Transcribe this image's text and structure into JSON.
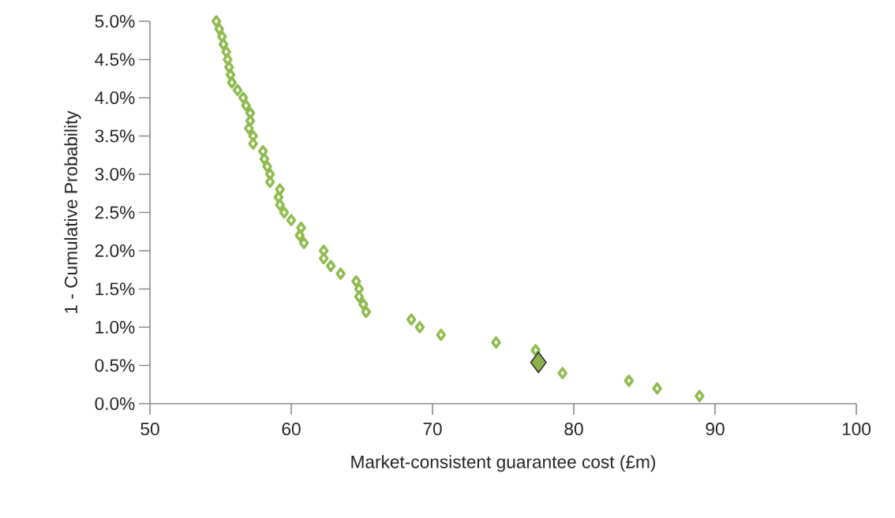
{
  "chart_data": {
    "type": "scatter",
    "xlabel": "Market-consistent guarantee cost (£m)",
    "ylabel": "1 - Cumulative Probability",
    "xlim": [
      50,
      100
    ],
    "xticks": [
      50,
      60,
      70,
      80,
      90,
      100
    ],
    "ylim": [
      0,
      5
    ],
    "yticks": [
      {
        "value": 0,
        "label": "0.0%"
      },
      {
        "value": 0.5,
        "label": "0.5%"
      },
      {
        "value": 1,
        "label": "1.0%"
      },
      {
        "value": 1.5,
        "label": "1.5%"
      },
      {
        "value": 2,
        "label": "2.0%"
      },
      {
        "value": 2.5,
        "label": "2.5%"
      },
      {
        "value": 3,
        "label": "3.0%"
      },
      {
        "value": 3.5,
        "label": "3.5%"
      },
      {
        "value": 4,
        "label": "4.0%"
      },
      {
        "value": 4.5,
        "label": "4.5%"
      },
      {
        "value": 5,
        "label": "5.0%"
      }
    ],
    "marker": "diamond",
    "grid": false,
    "series": [
      {
        "color": "#8fbc4f",
        "x": [
          54.7,
          54.9,
          55.1,
          55.2,
          55.4,
          55.5,
          55.6,
          55.7,
          55.8,
          56.2,
          56.6,
          56.8,
          57.1,
          57.1,
          57.0,
          57.3,
          57.3,
          58.0,
          58.1,
          58.3,
          58.5,
          58.5,
          59.2,
          59.1,
          59.2,
          59.5,
          60.0,
          60.7,
          60.6,
          60.9,
          62.3,
          62.3,
          62.8,
          63.5,
          64.6,
          64.8,
          64.8,
          65.1,
          65.3,
          68.5,
          69.1,
          70.6,
          74.5,
          77.3,
          79.2,
          83.9,
          85.9,
          88.9
        ],
        "values": [
          5.0,
          4.9,
          4.8,
          4.7,
          4.6,
          4.5,
          4.4,
          4.3,
          4.2,
          4.1,
          4.0,
          3.9,
          3.8,
          3.7,
          3.6,
          3.5,
          3.4,
          3.3,
          3.2,
          3.1,
          3.0,
          2.9,
          2.8,
          2.7,
          2.6,
          2.5,
          2.4,
          2.3,
          2.2,
          2.1,
          2.0,
          1.9,
          1.8,
          1.7,
          1.6,
          1.5,
          1.4,
          1.3,
          1.2,
          1.1,
          1.0,
          0.9,
          0.8,
          0.7,
          0.4,
          0.3,
          0.2,
          0.1
        ]
      },
      {
        "color": "#8db04a",
        "x": [
          77.5
        ],
        "values": [
          0.54
        ]
      }
    ]
  }
}
